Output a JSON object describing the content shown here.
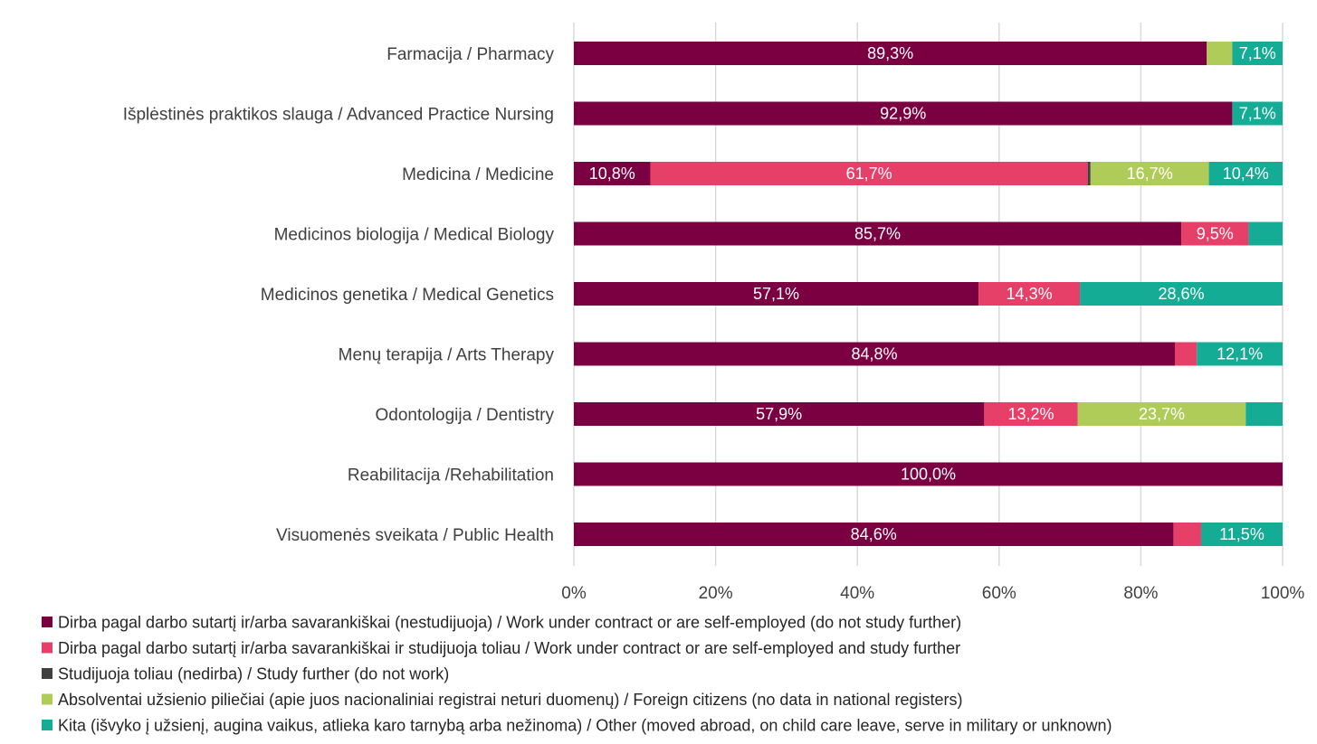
{
  "chart_data": {
    "type": "bar",
    "orientation": "horizontal",
    "stacked": true,
    "percent": true,
    "title": "",
    "xlabel": "",
    "ylabel": "",
    "xlim": [
      0,
      100
    ],
    "grid": true,
    "legend_position": "bottom",
    "x_ticks": [
      "0%",
      "20%",
      "40%",
      "60%",
      "80%",
      "100%"
    ],
    "categories": [
      "Farmacija / Pharmacy",
      "Išplėstinės praktikos slauga / Advanced Practice Nursing",
      "Medicina / Medicine",
      "Medicinos biologija / Medical Biology",
      "Medicinos genetika / Medical Genetics",
      "Menų terapija / Arts Therapy",
      "Odontologija / Dentistry",
      "Reabilitacija /Rehabilitation",
      "Visuomenės sveikata / Public Health"
    ],
    "series": [
      {
        "name": "Dirba pagal darbo sutartį ir/arba savarankiškai (nestudijuoja) / Work under contract or are self-employed (do not study further)",
        "color": "#7b0041",
        "values": [
          89.3,
          92.9,
          10.8,
          85.7,
          57.1,
          84.8,
          57.9,
          100.0,
          84.6
        ],
        "labels": [
          "89,3%",
          "92,9%",
          "10,8%",
          "85,7%",
          "57,1%",
          "84,8%",
          "57,9%",
          "100,0%",
          "84,6%"
        ]
      },
      {
        "name": "Dirba pagal darbo sutartį ir/arba savarankiškai  ir studijuoja toliau / Work under contract or are self-employed and study further",
        "color": "#e63f68",
        "values": [
          0,
          0,
          61.7,
          9.5,
          14.3,
          3.1,
          13.2,
          0,
          3.9
        ],
        "labels": [
          "",
          "",
          "61,7%",
          "9,5%",
          "14,3%",
          "",
          "13,2%",
          "",
          ""
        ]
      },
      {
        "name": "Studijuoja toliau (nedirba) / Study further (do not work)",
        "color": "#404040",
        "values": [
          0,
          0,
          0.4,
          0,
          0,
          0,
          0,
          0,
          0
        ],
        "labels": [
          "",
          "",
          "",
          "",
          "",
          "",
          "",
          "",
          ""
        ]
      },
      {
        "name": "Absolventai užsienio piliečiai (apie juos nacionaliniai registrai neturi duomenų) / Foreign citizens (no data in national registers)",
        "color": "#afcb58",
        "values": [
          3.6,
          0,
          16.7,
          0,
          0,
          0,
          23.7,
          0,
          0
        ],
        "labels": [
          "",
          "",
          "16,7%",
          "",
          "",
          "",
          "23,7%",
          "",
          ""
        ]
      },
      {
        "name": "Kita (išvyko į užsienį, augina vaikus, atlieka karo tarnybą arba nežinoma) / Other (moved abroad, on child care leave, serve in military or unknown)",
        "color": "#14ac94",
        "values": [
          7.1,
          7.1,
          10.4,
          4.8,
          28.6,
          12.1,
          5.2,
          0,
          11.5
        ],
        "labels": [
          "7,1%",
          "7,1%",
          "10,4%",
          "",
          "28,6%",
          "12,1%",
          "",
          "",
          "11,5%"
        ]
      }
    ]
  }
}
